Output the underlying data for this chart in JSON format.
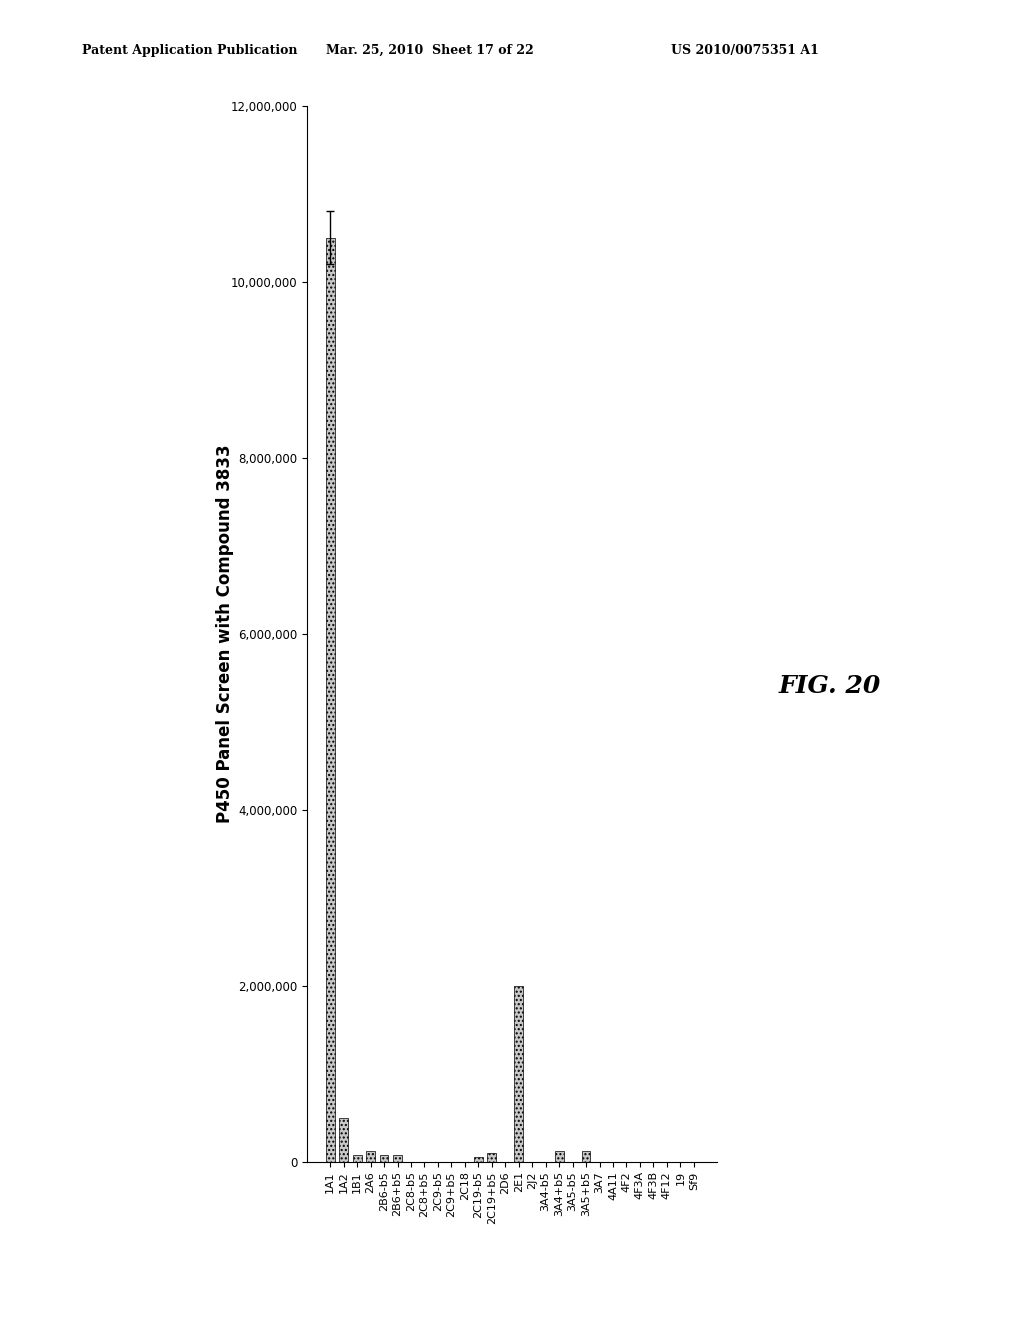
{
  "title": "P450 Panel Screen with Compound 3833",
  "categories": [
    "Sf9",
    "19",
    "4F12",
    "4F3B",
    "4F3A",
    "4F2",
    "4A11",
    "3A7",
    "3A5+b5",
    "3A5-b5",
    "3A4+b5",
    "3A4-b5",
    "2J2",
    "2E1",
    "2D6",
    "2C19+b5",
    "2C19-b5",
    "2C18",
    "2C9+b5",
    "2C9-b5",
    "2C8+b5",
    "2C8-b5",
    "2B6+b5",
    "2B6-b5",
    "2A6",
    "1B1",
    "1A2",
    "1A1"
  ],
  "values": [
    0,
    0,
    0,
    0,
    0,
    0,
    0,
    0,
    120000,
    0,
    120000,
    0,
    0,
    2000000,
    0,
    100000,
    50000,
    0,
    0,
    0,
    0,
    0,
    80000,
    80000,
    120000,
    80000,
    500000,
    10500000
  ],
  "error_1a1": 300000,
  "bar_color": "#c8c8c8",
  "bar_hatch": "....",
  "ylim": [
    0,
    12000000
  ],
  "yticks": [
    0,
    2000000,
    4000000,
    6000000,
    8000000,
    10000000,
    12000000
  ],
  "ytick_labels": [
    "0",
    "2,000,000",
    "4,000,000",
    "6,000,000",
    "8,000,000",
    "10,000,000",
    "12,000,000"
  ],
  "fig_annotation": "FIG. 20",
  "header_left": "Patent Application Publication",
  "header_center": "Mar. 25, 2010  Sheet 17 of 22",
  "header_right": "US 2010/0075351 A1",
  "background_color": "#ffffff",
  "title_fontsize": 12,
  "tick_fontsize": 8.5,
  "cat_fontsize": 8
}
